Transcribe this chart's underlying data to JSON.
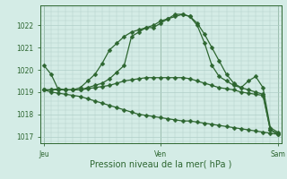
{
  "bg_color": "#d4ece6",
  "grid_color": "#b0cfc8",
  "line_color": "#2d6630",
  "text_color": "#2d6630",
  "xlabel": "Pression niveau de la mer( hPa )",
  "ylim": [
    1016.7,
    1022.9
  ],
  "yticks": [
    1017,
    1018,
    1019,
    1020,
    1021,
    1022
  ],
  "xtick_labels": [
    "Jeu",
    "Ven",
    "Sam"
  ],
  "xtick_positions": [
    0,
    16,
    32
  ],
  "total_points": 33,
  "series": [
    [
      1020.2,
      1019.8,
      1019.1,
      1019.1,
      1019.1,
      1019.2,
      1019.5,
      1019.8,
      1020.3,
      1020.9,
      1021.2,
      1021.5,
      1021.7,
      1021.8,
      1021.9,
      1021.9,
      1022.1,
      1022.3,
      1022.5,
      1022.5,
      1022.4,
      1022.1,
      1021.6,
      1021.0,
      1020.4,
      1019.8,
      1019.4,
      1019.2,
      1019.5,
      1019.7,
      1019.2,
      1017.4,
      1017.2
    ],
    [
      1019.1,
      1019.1,
      1019.1,
      1019.1,
      1019.1,
      1019.1,
      1019.2,
      1019.3,
      1019.4,
      1019.6,
      1019.9,
      1020.2,
      1021.5,
      1021.7,
      1021.9,
      1022.0,
      1022.2,
      1022.3,
      1022.4,
      1022.5,
      1022.4,
      1022.0,
      1021.2,
      1020.2,
      1019.7,
      1019.5,
      1019.3,
      1019.2,
      1019.1,
      1019.0,
      1018.9,
      1017.3,
      1017.1
    ],
    [
      1019.1,
      1019.1,
      1019.15,
      1019.1,
      1019.1,
      1019.1,
      1019.15,
      1019.2,
      1019.25,
      1019.3,
      1019.4,
      1019.5,
      1019.55,
      1019.6,
      1019.65,
      1019.65,
      1019.65,
      1019.65,
      1019.65,
      1019.65,
      1019.6,
      1019.5,
      1019.4,
      1019.3,
      1019.2,
      1019.15,
      1019.1,
      1019.0,
      1018.95,
      1018.9,
      1018.85,
      1017.3,
      1017.15
    ],
    [
      1019.1,
      1019.0,
      1018.95,
      1018.9,
      1018.85,
      1018.8,
      1018.7,
      1018.6,
      1018.5,
      1018.4,
      1018.3,
      1018.2,
      1018.1,
      1018.0,
      1017.95,
      1017.9,
      1017.85,
      1017.8,
      1017.75,
      1017.7,
      1017.7,
      1017.65,
      1017.6,
      1017.55,
      1017.5,
      1017.45,
      1017.4,
      1017.35,
      1017.3,
      1017.25,
      1017.2,
      1017.15,
      1017.1
    ]
  ],
  "marker_size": 2.5,
  "linewidth": 0.9,
  "ylabel_fontsize": 5.5,
  "xlabel_fontsize": 7,
  "xtick_fontsize": 5.5
}
